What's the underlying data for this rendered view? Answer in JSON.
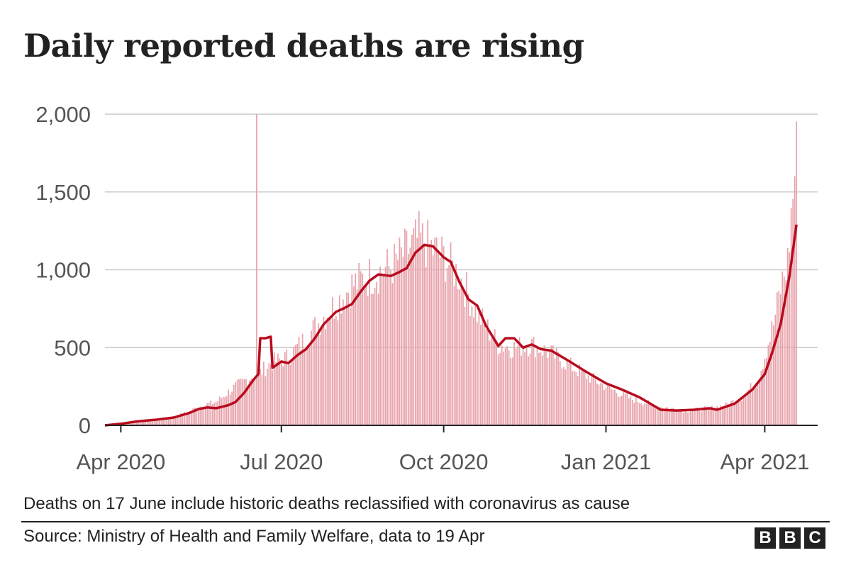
{
  "title": "Daily reported deaths are rising",
  "note": "Deaths on 17 June include historic deaths reclassified with coronavirus as cause",
  "source": "Source: Ministry of Health and Family Welfare, data to 19 Apr",
  "logo": [
    "B",
    "B",
    "C"
  ],
  "colors": {
    "bars": "#e8a3ab",
    "line": "#b80c1e",
    "grid": "#cccccc",
    "axis": "#222222"
  },
  "chart_data": {
    "type": "bar",
    "title": "Daily reported deaths are rising",
    "xlabel": "",
    "ylabel": "",
    "x_start": "2020-03-23",
    "x_end": "2021-04-19",
    "xlim": [
      "2020-03-23",
      "2021-05-01"
    ],
    "ylim": [
      0,
      2000
    ],
    "yticks": [
      0,
      500,
      1000,
      1500,
      2000
    ],
    "ytick_labels": [
      "0",
      "500",
      "1,000",
      "1,500",
      "2,000"
    ],
    "xticks": [
      "2020-04-01",
      "2020-07-01",
      "2020-10-01",
      "2021-01-01",
      "2021-04-01"
    ],
    "xtick_labels": [
      "Apr 2020",
      "Jul 2020",
      "Oct 2020",
      "Jan 2021",
      "Apr 2021"
    ],
    "grid": true,
    "series": [
      {
        "type": "bar",
        "points": [
          [
            "2020-03-23",
            2
          ],
          [
            "2020-04-01",
            10
          ],
          [
            "2020-04-10",
            25
          ],
          [
            "2020-04-20",
            35
          ],
          [
            "2020-05-01",
            55
          ],
          [
            "2020-05-10",
            90
          ],
          [
            "2020-05-15",
            120
          ],
          [
            "2020-05-25",
            150
          ],
          [
            "2020-06-05",
            250
          ],
          [
            "2020-06-15",
            320
          ],
          [
            "2020-06-17",
            2000
          ],
          [
            "2020-06-18",
            330
          ],
          [
            "2020-06-25",
            400
          ],
          [
            "2020-07-05",
            440
          ],
          [
            "2020-07-15",
            560
          ],
          [
            "2020-07-25",
            700
          ],
          [
            "2020-08-01",
            780
          ],
          [
            "2020-08-10",
            900
          ],
          [
            "2020-08-20",
            960
          ],
          [
            "2020-09-01",
            1020
          ],
          [
            "2020-09-10",
            1120
          ],
          [
            "2020-09-17",
            1200
          ],
          [
            "2020-09-25",
            1130
          ],
          [
            "2020-10-01",
            1080
          ],
          [
            "2020-10-10",
            960
          ],
          [
            "2020-10-20",
            720
          ],
          [
            "2020-11-01",
            520
          ],
          [
            "2020-11-10",
            500
          ],
          [
            "2020-11-20",
            520
          ],
          [
            "2020-12-01",
            460
          ],
          [
            "2020-12-15",
            360
          ],
          [
            "2021-01-01",
            250
          ],
          [
            "2021-01-15",
            170
          ],
          [
            "2021-02-01",
            120
          ],
          [
            "2021-02-15",
            95
          ],
          [
            "2021-03-01",
            110
          ],
          [
            "2021-03-10",
            130
          ],
          [
            "2021-03-20",
            190
          ],
          [
            "2021-03-28",
            290
          ],
          [
            "2021-04-01",
            450
          ],
          [
            "2021-04-06",
            650
          ],
          [
            "2021-04-10",
            880
          ],
          [
            "2021-04-14",
            1050
          ],
          [
            "2021-04-16",
            1350
          ],
          [
            "2021-04-18",
            1620
          ],
          [
            "2021-04-19",
            1760
          ]
        ]
      },
      {
        "type": "line",
        "points": [
          [
            "2020-03-23",
            0
          ],
          [
            "2020-04-01",
            10
          ],
          [
            "2020-04-10",
            25
          ],
          [
            "2020-04-20",
            35
          ],
          [
            "2020-05-01",
            50
          ],
          [
            "2020-05-10",
            80
          ],
          [
            "2020-05-15",
            105
          ],
          [
            "2020-05-20",
            115
          ],
          [
            "2020-05-25",
            110
          ],
          [
            "2020-06-01",
            130
          ],
          [
            "2020-06-05",
            150
          ],
          [
            "2020-06-10",
            210
          ],
          [
            "2020-06-15",
            290
          ],
          [
            "2020-06-18",
            330
          ],
          [
            "2020-06-19",
            560
          ],
          [
            "2020-06-22",
            560
          ],
          [
            "2020-06-25",
            570
          ],
          [
            "2020-06-26",
            370
          ],
          [
            "2020-07-01",
            410
          ],
          [
            "2020-07-05",
            400
          ],
          [
            "2020-07-10",
            450
          ],
          [
            "2020-07-15",
            490
          ],
          [
            "2020-07-20",
            560
          ],
          [
            "2020-07-25",
            650
          ],
          [
            "2020-08-01",
            730
          ],
          [
            "2020-08-05",
            750
          ],
          [
            "2020-08-10",
            780
          ],
          [
            "2020-08-15",
            860
          ],
          [
            "2020-08-20",
            930
          ],
          [
            "2020-08-25",
            970
          ],
          [
            "2020-09-01",
            960
          ],
          [
            "2020-09-05",
            980
          ],
          [
            "2020-09-10",
            1010
          ],
          [
            "2020-09-15",
            1110
          ],
          [
            "2020-09-20",
            1160
          ],
          [
            "2020-09-25",
            1150
          ],
          [
            "2020-10-01",
            1080
          ],
          [
            "2020-10-05",
            1050
          ],
          [
            "2020-10-10",
            920
          ],
          [
            "2020-10-15",
            810
          ],
          [
            "2020-10-20",
            770
          ],
          [
            "2020-10-25",
            640
          ],
          [
            "2020-11-01",
            510
          ],
          [
            "2020-11-05",
            560
          ],
          [
            "2020-11-10",
            560
          ],
          [
            "2020-11-15",
            500
          ],
          [
            "2020-11-20",
            520
          ],
          [
            "2020-11-25",
            490
          ],
          [
            "2020-12-01",
            480
          ],
          [
            "2020-12-10",
            420
          ],
          [
            "2020-12-20",
            350
          ],
          [
            "2021-01-01",
            270
          ],
          [
            "2021-01-10",
            230
          ],
          [
            "2021-01-20",
            180
          ],
          [
            "2021-02-01",
            100
          ],
          [
            "2021-02-10",
            95
          ],
          [
            "2021-02-20",
            100
          ],
          [
            "2021-03-01",
            110
          ],
          [
            "2021-03-05",
            100
          ],
          [
            "2021-03-15",
            140
          ],
          [
            "2021-03-25",
            230
          ],
          [
            "2021-04-01",
            330
          ],
          [
            "2021-04-05",
            460
          ],
          [
            "2021-04-10",
            650
          ],
          [
            "2021-04-15",
            960
          ],
          [
            "2021-04-19",
            1290
          ]
        ]
      }
    ]
  }
}
